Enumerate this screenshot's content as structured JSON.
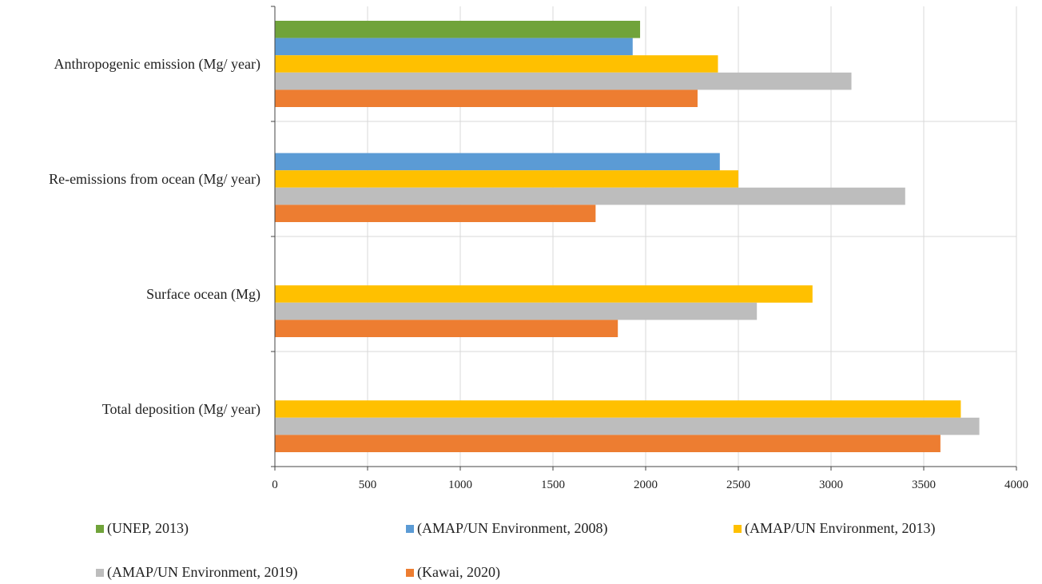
{
  "chart_data": {
    "type": "bar",
    "orientation": "horizontal",
    "title": "",
    "xlabel": "",
    "ylabel": "",
    "xlim": [
      0,
      4000
    ],
    "x_ticks": [
      "0",
      "500",
      "1000",
      "1500",
      "2000",
      "2500",
      "3000",
      "3500",
      "4000"
    ],
    "grid": true,
    "legend_position": "bottom",
    "categories": [
      "Anthropogenic emission  (Mg/ year)",
      "Re-emissions from ocean (Mg/ year)",
      "Surface ocean (Mg)",
      "Total deposition (Mg/ year)"
    ],
    "series": [
      {
        "name": "(UNEP, 2013)",
        "color": "#70a33a",
        "values": [
          1970,
          null,
          null,
          null
        ]
      },
      {
        "name": "(AMAP/UN Environment, 2008)",
        "color": "#5b9bd5",
        "values": [
          1930,
          2400,
          null,
          null
        ]
      },
      {
        "name": "(AMAP/UN Environment, 2013)",
        "color": "#ffc000",
        "values": [
          2390,
          2500,
          2900,
          3700
        ]
      },
      {
        "name": "(AMAP/UN Environment, 2019)",
        "color": "#bdbdbd",
        "values": [
          3110,
          3400,
          2600,
          3800
        ]
      },
      {
        "name": "(Kawai, 2020)",
        "color": "#ed7d31",
        "values": [
          2280,
          1730,
          1850,
          3590
        ]
      }
    ]
  }
}
